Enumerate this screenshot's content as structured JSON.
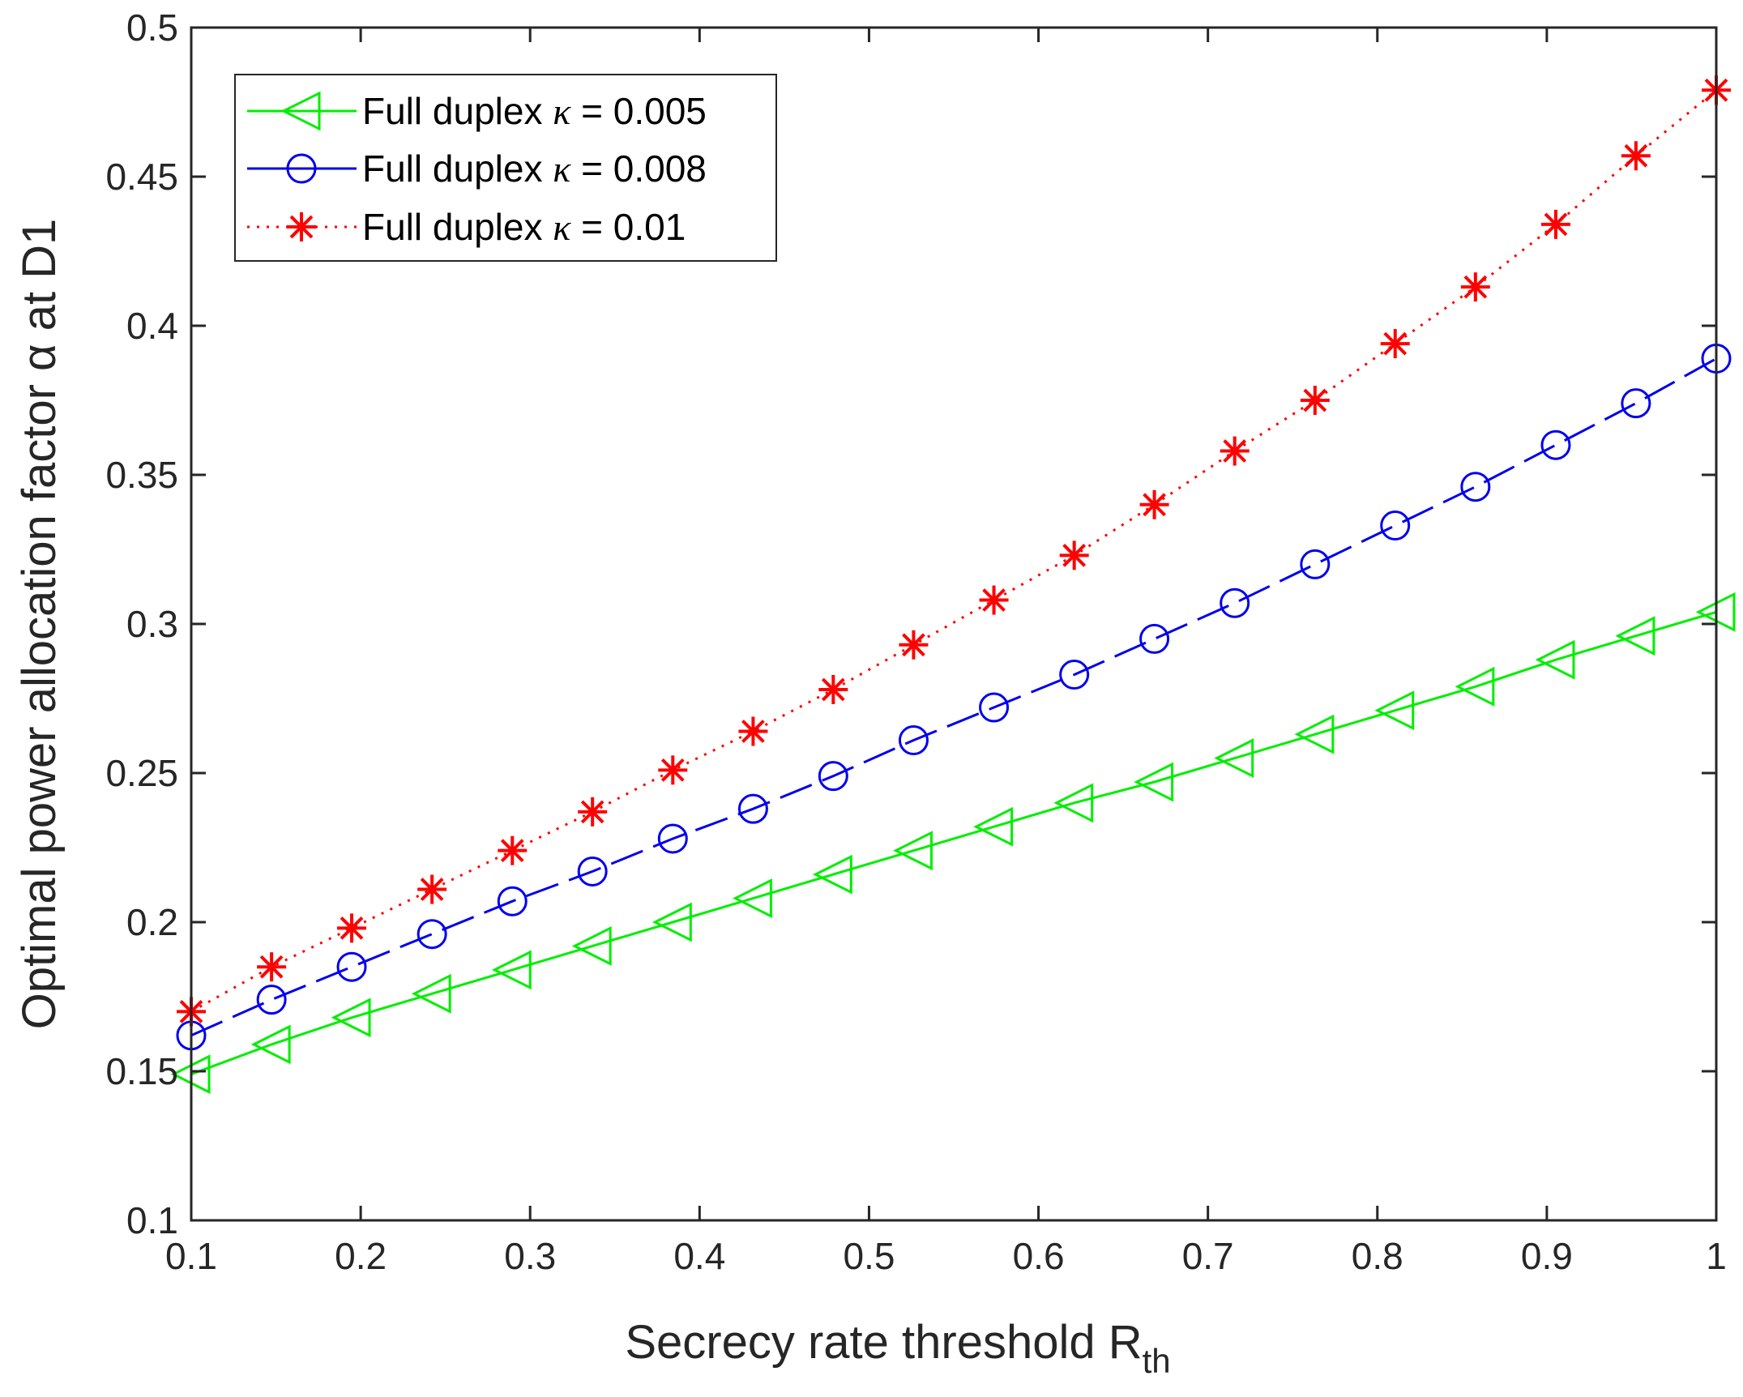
{
  "chart_data": {
    "type": "line",
    "title": "",
    "xlabel": "Secrecy rate threshold R",
    "xlabel_subscript": "th",
    "ylabel": "Optimal power allocation factor α at D1",
    "xlim": [
      0.1,
      1.0
    ],
    "ylim": [
      0.1,
      0.5
    ],
    "xticks": [
      0.1,
      0.2,
      0.3,
      0.4,
      0.5,
      0.6,
      0.7,
      0.8,
      0.9,
      1.0
    ],
    "xtick_labels": [
      "0.1",
      "0.2",
      "0.3",
      "0.4",
      "0.5",
      "0.6",
      "0.7",
      "0.8",
      "0.9",
      "1"
    ],
    "yticks": [
      0.1,
      0.15,
      0.2,
      0.25,
      0.3,
      0.35,
      0.4,
      0.45,
      0.5
    ],
    "ytick_labels": [
      "0.1",
      "0.15",
      "0.2",
      "0.25",
      "0.3",
      "0.35",
      "0.4",
      "0.45",
      "0.5"
    ],
    "grid": false,
    "legend_position": "top-left",
    "x": [
      0.1,
      0.1474,
      0.1947,
      0.2421,
      0.2895,
      0.3368,
      0.3842,
      0.4316,
      0.4789,
      0.5263,
      0.5737,
      0.6211,
      0.6684,
      0.7158,
      0.7632,
      0.8105,
      0.8579,
      0.9053,
      0.9526,
      1.0
    ],
    "series": [
      {
        "name": "Full duplex κ = 0.005",
        "legend_prefix": "Full duplex ",
        "legend_symbol": "κ",
        "legend_suffix": " = 0.005",
        "color": "#00ee00",
        "line_style": "solid",
        "marker": "triangle-left",
        "values": [
          0.149,
          0.159,
          0.168,
          0.176,
          0.184,
          0.192,
          0.2,
          0.208,
          0.216,
          0.224,
          0.232,
          0.24,
          0.247,
          0.255,
          0.263,
          0.271,
          0.279,
          0.288,
          0.296,
          0.304
        ]
      },
      {
        "name": "Full duplex κ = 0.008",
        "legend_prefix": "Full duplex ",
        "legend_symbol": "κ",
        "legend_suffix": " = 0.008",
        "color": "#0000ee",
        "line_style": "dashed",
        "marker": "circle",
        "values": [
          0.162,
          0.174,
          0.185,
          0.196,
          0.207,
          0.217,
          0.228,
          0.238,
          0.249,
          0.261,
          0.272,
          0.283,
          0.295,
          0.307,
          0.32,
          0.333,
          0.346,
          0.36,
          0.374,
          0.389
        ]
      },
      {
        "name": "Full duplex κ = 0.01",
        "legend_prefix": "Full duplex ",
        "legend_symbol": "κ",
        "legend_suffix": " = 0.01",
        "color": "#ff0000",
        "line_style": "dotted",
        "marker": "asterisk",
        "values": [
          0.17,
          0.185,
          0.198,
          0.211,
          0.224,
          0.237,
          0.251,
          0.264,
          0.278,
          0.293,
          0.308,
          0.323,
          0.34,
          0.358,
          0.375,
          0.394,
          0.413,
          0.434,
          0.457,
          0.479
        ]
      }
    ]
  }
}
